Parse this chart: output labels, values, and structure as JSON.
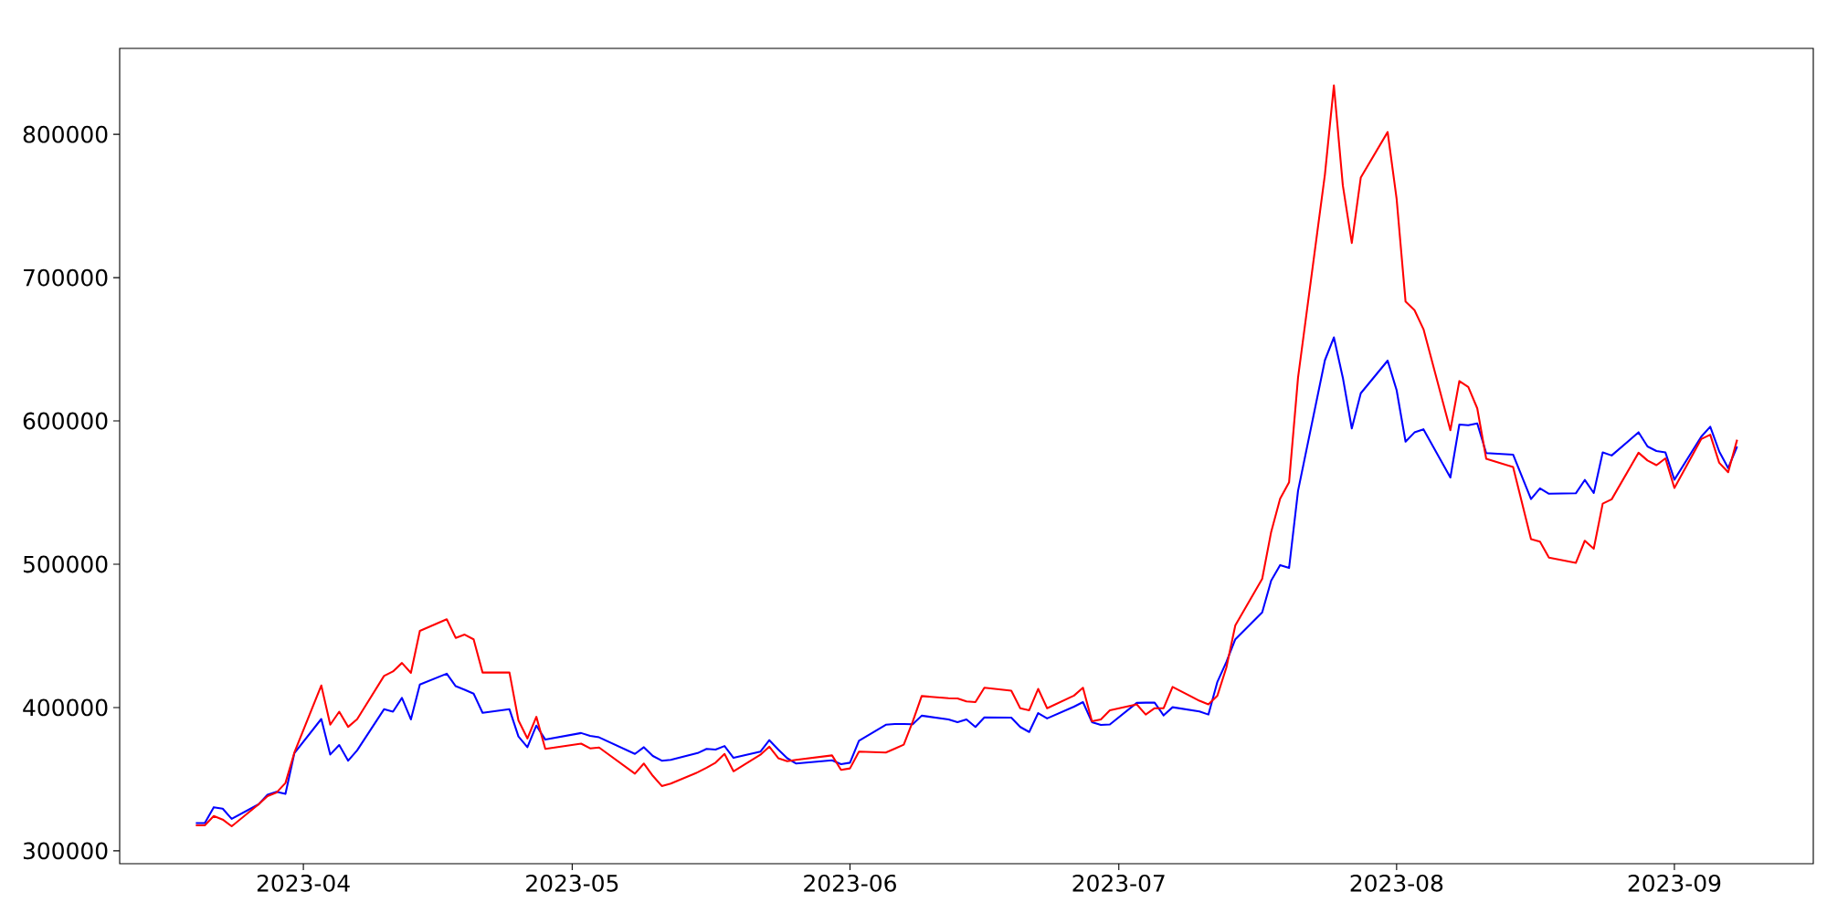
{
  "chart_data": {
    "type": "line",
    "x": [
      "2023-03-20",
      "2023-03-21",
      "2023-03-22",
      "2023-03-23",
      "2023-03-24",
      "2023-03-27",
      "2023-03-28",
      "2023-03-29",
      "2023-03-30",
      "2023-03-31",
      "2023-04-03",
      "2023-04-04",
      "2023-04-05",
      "2023-04-06",
      "2023-04-07",
      "2023-04-10",
      "2023-04-11",
      "2023-04-12",
      "2023-04-13",
      "2023-04-14",
      "2023-04-17",
      "2023-04-18",
      "2023-04-19",
      "2023-04-20",
      "2023-04-21",
      "2023-04-24",
      "2023-04-25",
      "2023-04-26",
      "2023-04-27",
      "2023-04-28",
      "2023-05-02",
      "2023-05-03",
      "2023-05-04",
      "2023-05-08",
      "2023-05-09",
      "2023-05-10",
      "2023-05-11",
      "2023-05-12",
      "2023-05-15",
      "2023-05-16",
      "2023-05-17",
      "2023-05-18",
      "2023-05-19",
      "2023-05-22",
      "2023-05-23",
      "2023-05-24",
      "2023-05-25",
      "2023-05-26",
      "2023-05-30",
      "2023-05-31",
      "2023-06-01",
      "2023-06-02",
      "2023-06-05",
      "2023-06-06",
      "2023-06-07",
      "2023-06-08",
      "2023-06-09",
      "2023-06-12",
      "2023-06-13",
      "2023-06-14",
      "2023-06-15",
      "2023-06-16",
      "2023-06-19",
      "2023-06-20",
      "2023-06-21",
      "2023-06-22",
      "2023-06-23",
      "2023-06-26",
      "2023-06-27",
      "2023-06-28",
      "2023-06-29",
      "2023-06-30",
      "2023-07-03",
      "2023-07-04",
      "2023-07-05",
      "2023-07-06",
      "2023-07-07",
      "2023-07-10",
      "2023-07-11",
      "2023-07-12",
      "2023-07-13",
      "2023-07-14",
      "2023-07-17",
      "2023-07-18",
      "2023-07-19",
      "2023-07-20",
      "2023-07-21",
      "2023-07-24",
      "2023-07-25",
      "2023-07-26",
      "2023-07-27",
      "2023-07-28",
      "2023-07-31",
      "2023-08-01",
      "2023-08-02",
      "2023-08-03",
      "2023-08-04",
      "2023-08-07",
      "2023-08-08",
      "2023-08-09",
      "2023-08-10",
      "2023-08-11",
      "2023-08-14",
      "2023-08-16",
      "2023-08-17",
      "2023-08-18",
      "2023-08-21",
      "2023-08-22",
      "2023-08-23",
      "2023-08-24",
      "2023-08-25",
      "2023-08-28",
      "2023-08-29",
      "2023-08-30",
      "2023-08-31",
      "2023-09-01",
      "2023-09-04",
      "2023-09-05",
      "2023-09-06",
      "2023-09-07",
      "2023-09-08"
    ],
    "series": [
      {
        "color": "#0000ff",
        "values": [
          319400,
          319400,
          330400,
          329400,
          322300,
          332400,
          339100,
          341200,
          339700,
          368200,
          392000,
          367200,
          373800,
          362900,
          370100,
          398800,
          397100,
          406700,
          391700,
          416000,
          423600,
          414900,
          412400,
          409700,
          396300,
          398800,
          379800,
          372300,
          387400,
          377600,
          382200,
          380200,
          379200,
          367600,
          372300,
          366200,
          362900,
          363500,
          368200,
          371100,
          370700,
          373100,
          364900,
          369200,
          377200,
          370700,
          364600,
          360900,
          363200,
          360500,
          361500,
          376800,
          388000,
          388500,
          388500,
          388300,
          394300,
          391700,
          389800,
          391700,
          386400,
          393100,
          393000,
          386400,
          382900,
          396100,
          392400,
          400600,
          403800,
          389800,
          387800,
          388200,
          403200,
          403400,
          403400,
          394500,
          400200,
          397200,
          395100,
          417900,
          431700,
          447600,
          466400,
          488500,
          499400,
          497400,
          551200,
          642400,
          658300,
          630200,
          594800,
          619300,
          642100,
          621500,
          585500,
          592000,
          594200,
          560500,
          597500,
          597000,
          598300,
          577600,
          576500,
          545500,
          553000,
          549200,
          549500,
          558800,
          549700,
          578000,
          575900,
          592100,
          582200,
          579000,
          578000,
          559000,
          589000,
          596000,
          578700,
          567100,
          582200
        ]
      },
      {
        "color": "#ff0000",
        "values": [
          317800,
          317800,
          324300,
          321800,
          317100,
          332400,
          338100,
          340600,
          347300,
          368600,
          415400,
          388000,
          397100,
          386500,
          391800,
          422000,
          425200,
          431100,
          424200,
          453500,
          461600,
          448600,
          450900,
          447600,
          424400,
          424400,
          391000,
          378400,
          393500,
          371100,
          374800,
          371500,
          372100,
          353800,
          360900,
          352300,
          345200,
          346900,
          354800,
          358000,
          361500,
          367600,
          355500,
          367000,
          372700,
          364600,
          362500,
          363500,
          366600,
          356500,
          357500,
          369200,
          368600,
          371300,
          374100,
          390200,
          408000,
          406500,
          406300,
          404200,
          403800,
          413800,
          411800,
          399500,
          398100,
          413000,
          399500,
          408300,
          413800,
          390400,
          391700,
          398100,
          402200,
          395100,
          399500,
          399500,
          414400,
          404700,
          402200,
          408300,
          427800,
          457300,
          489800,
          522500,
          545700,
          557200,
          630200,
          772000,
          834100,
          764300,
          724200,
          769800,
          801600,
          755100,
          683300,
          677300,
          664000,
          593500,
          627800,
          623700,
          608800,
          573600,
          567800,
          517500,
          515700,
          504600,
          500900,
          516400,
          510800,
          542300,
          545300,
          577800,
          572400,
          569100,
          573900,
          553200,
          587400,
          590400,
          570800,
          564200,
          586900
        ]
      }
    ],
    "xlim": [
      "2023-03-11T12:00",
      "2023-09-16T12:00"
    ],
    "ylim": [
      291000,
      860000
    ],
    "xticks": [
      {
        "value": "2023-04-01",
        "label": "2023-04"
      },
      {
        "value": "2023-05-01",
        "label": "2023-05"
      },
      {
        "value": "2023-06-01",
        "label": "2023-06"
      },
      {
        "value": "2023-07-01",
        "label": "2023-07"
      },
      {
        "value": "2023-08-01",
        "label": "2023-08"
      },
      {
        "value": "2023-09-01",
        "label": "2023-09"
      }
    ],
    "yticks": [
      300000,
      400000,
      500000,
      600000,
      700000,
      800000
    ]
  }
}
